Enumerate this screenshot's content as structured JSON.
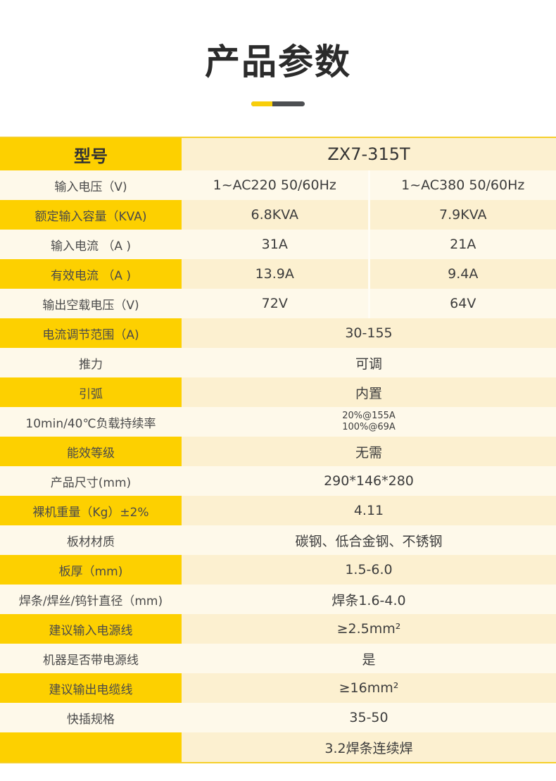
{
  "title": "产品参数",
  "colors": {
    "accent": "#fdd000",
    "dark": "#4d4f52"
  },
  "header": {
    "label": "型号",
    "value": "ZX7-315T"
  },
  "rows": [
    {
      "label": "输入电压（V)",
      "values": [
        "1~AC220 50/60Hz",
        "1~AC380 50/60Hz"
      ]
    },
    {
      "label": "额定输入容量（KVA)",
      "values": [
        "6.8KVA",
        "7.9KVA"
      ]
    },
    {
      "label": "输入电流 （A )",
      "values": [
        "31A",
        "21A"
      ]
    },
    {
      "label": "有效电流 （A )",
      "values": [
        "13.9A",
        "9.4A"
      ]
    },
    {
      "label": "输出空载电压（V)",
      "values": [
        "72V",
        "64V"
      ]
    },
    {
      "label": "电流调节范围（A)",
      "values": [
        "30-155"
      ]
    },
    {
      "label": "推力",
      "values": [
        "可调"
      ]
    },
    {
      "label": "引弧",
      "values": [
        "内置"
      ]
    },
    {
      "label": "10min/40℃负载持续率",
      "values": [
        "20%@155A",
        "100%@69A"
      ],
      "stacked": true
    },
    {
      "label": "能效等级",
      "values": [
        "无需"
      ]
    },
    {
      "label": "产品尺寸(mm)",
      "values": [
        "290*146*280"
      ]
    },
    {
      "label": "裸机重量（Kg）±2%",
      "values": [
        "4.11"
      ]
    },
    {
      "label": "板材材质",
      "values": [
        "碳钢、低合金钢、不锈钢"
      ]
    },
    {
      "label": "板厚（mm)",
      "values": [
        "1.5-6.0"
      ]
    },
    {
      "label": "焊条/焊丝/钨针直径（mm)",
      "values": [
        "焊条1.6-4.0"
      ]
    },
    {
      "label": "建议输入电源线",
      "values": [
        "≥2.5mm²"
      ]
    },
    {
      "label": "机器是否带电源线",
      "values": [
        "是"
      ]
    },
    {
      "label": "建议输出电缆线",
      "values": [
        "≥16mm²"
      ]
    },
    {
      "label": "快插规格",
      "values": [
        "35-50"
      ]
    },
    {
      "label": "",
      "values": [
        "3.2焊条连续焊"
      ]
    }
  ]
}
